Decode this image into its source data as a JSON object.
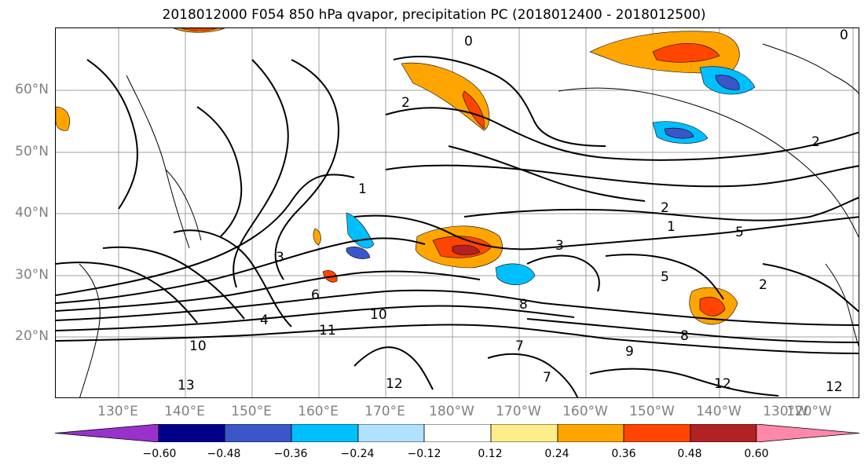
{
  "title": "2018012000 F054 850 hPa qvapor, precipitation PC (2018012400 - 2018012500)",
  "lat_labels": [
    "60°N",
    "50°N",
    "40°N",
    "30°N",
    "20°N"
  ],
  "lon_labels": [
    "130°E",
    "140°E",
    "150°E",
    "160°E",
    "170°E",
    "180°W",
    "170°W",
    "160°W",
    "150°W",
    "140°W",
    "130°W",
    "120°W"
  ],
  "colorbar": {
    "colors": [
      "#9932cc",
      "#00008b",
      "#3a56c8",
      "#00bfff",
      "#b0e2ff",
      "#ffffff",
      "#ffec8b",
      "#ffa500",
      "#ff4500",
      "#b22222",
      "#ff88aa"
    ],
    "ticks": [
      "−0.60",
      "−0.48",
      "−0.36",
      "−0.24",
      "−0.12",
      "0.12",
      "0.24",
      "0.36",
      "0.48",
      "0.60"
    ]
  },
  "contour_labels": [
    "0",
    "0",
    "1",
    "1",
    "2",
    "2",
    "2",
    "2",
    "3",
    "3",
    "4",
    "5",
    "5",
    "6",
    "7",
    "7",
    "8",
    "8",
    "9",
    "10",
    "10",
    "11",
    "12",
    "12",
    "12",
    "13"
  ],
  "colors": {
    "contour": "#000000",
    "grid": "#a0a0a0",
    "tick_label": "#808080"
  }
}
